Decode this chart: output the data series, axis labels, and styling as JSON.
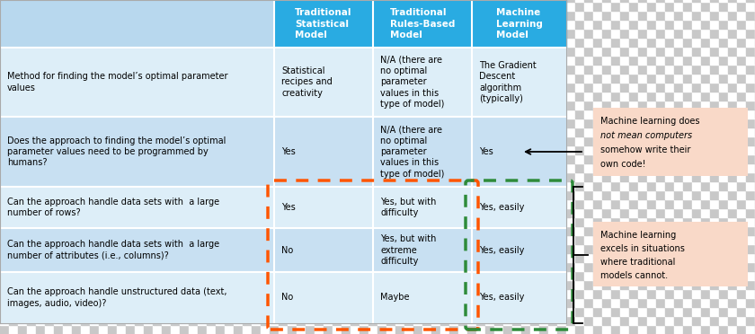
{
  "header_bg": "#29ABE2",
  "header_text_color": "#FFFFFF",
  "row_bg_light": "#DDEEF8",
  "row_bg_medium": "#C8E0F2",
  "annotation_bg": "#F9D9C8",
  "orange_dashed": "#FF5500",
  "green_dashed": "#2E8B3A",
  "col_headers": [
    "Traditional\nStatistical\nModel",
    "Traditional\nRules-Based\nModel",
    "Machine\nLearning\nModel"
  ],
  "row_labels": [
    "Method for finding the model’s optimal parameter\nvalues",
    "Does the approach to finding the model’s optimal\nparameter values need to be programmed by\nhumans?",
    "Can the approach handle data sets with  a large\nnumber of rows?",
    "Can the approach handle data sets with  a large\nnumber of attributes (i.e., columns)?",
    "Can the approach handle unstructured data (text,\nimages, audio, video)?"
  ],
  "cell_data": [
    [
      "Statistical\nrecipes and\ncreativity",
      "N/A (there are\nno optimal\nparameter\nvalues in this\ntype of model)",
      "The Gradient\nDescent\nalgorithm\n(typically)"
    ],
    [
      "Yes",
      "N/A (there are\nno optimal\nparameter\nvalues in this\ntype of model)",
      "Yes"
    ],
    [
      "Yes",
      "Yes, but with\ndifficulty",
      "Yes, easily"
    ],
    [
      "No",
      "Yes, but with\nextreme\ndifficulty",
      "Yes, easily"
    ],
    [
      "No",
      "Maybe",
      "Yes, easily"
    ]
  ],
  "annotation1_lines": [
    "Machine learning does",
    "not mean computers",
    "somehow write their",
    "own code!"
  ],
  "annotation1_italic": [
    false,
    true,
    false,
    false
  ],
  "annotation2_lines": [
    "Machine learning",
    "excels in situations",
    "where traditional",
    "models cannot."
  ],
  "figsize": [
    8.4,
    3.72
  ],
  "dpi": 100
}
